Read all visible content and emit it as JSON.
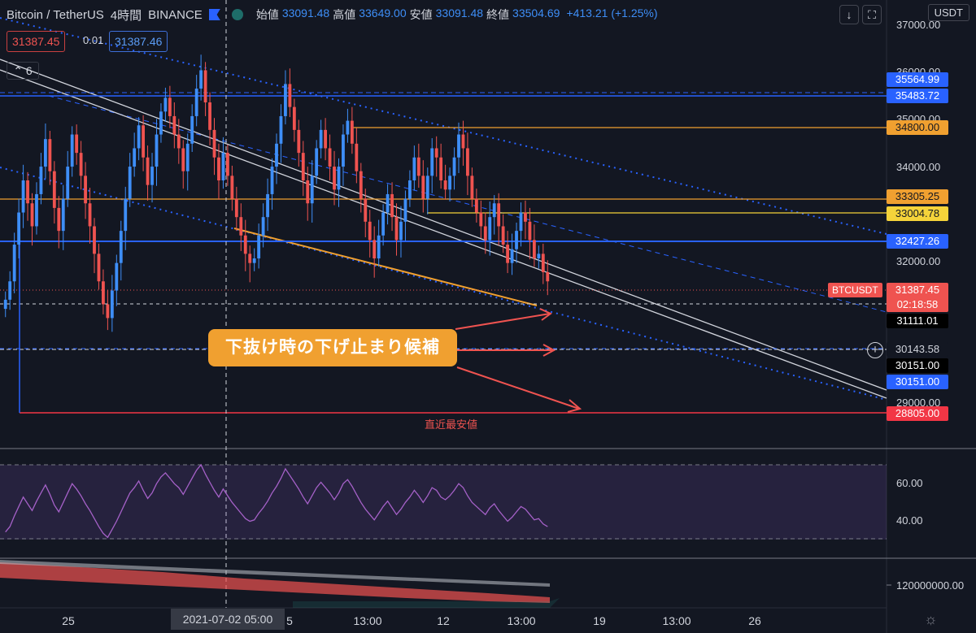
{
  "header": {
    "symbol": "Bitcoin / TetherUS",
    "interval": "4時間",
    "exchange": "BINANCE",
    "open_label": "始値",
    "open": "33091.48",
    "high_label": "高値",
    "high": "33649.00",
    "low_label": "安値",
    "low": "33091.48",
    "close_label": "終値",
    "close": "33504.69",
    "change": "+413.21 (+1.25%)"
  },
  "quote": {
    "bid": "31387.45",
    "spread": "0.01",
    "ask": "31387.46"
  },
  "indicator_collapse": "6",
  "currency_button": "USDT",
  "annotation": {
    "callout": "下抜け時の下げ止まり候補",
    "recent_low_note": "直近最安値"
  },
  "crosshair": {
    "date_label": "2021-07-02   05:00"
  },
  "chart_data": {
    "type": "candlestick",
    "series": [
      {
        "name": "BTCUSDT",
        "last": 31387.45,
        "countdown": "02:18:58"
      }
    ],
    "y_axis": {
      "min": 28500,
      "max": 37000,
      "ticks": [
        "37000.00",
        "36000.00",
        "35000.00",
        "34000.00",
        "33000.00",
        "32000.00",
        "29000.00"
      ]
    },
    "price_levels": [
      {
        "value": "35564.99",
        "color": "#2962ff",
        "style": "dashed"
      },
      {
        "value": "35483.72",
        "color": "#2962ff",
        "style": "solid"
      },
      {
        "value": "34800.00",
        "color": "#f0a030",
        "style": "solid"
      },
      {
        "value": "33305.25",
        "color": "#f0a030",
        "style": "solid"
      },
      {
        "value": "33004.78",
        "color": "#f5d33a",
        "style": "solid"
      },
      {
        "value": "32427.26",
        "color": "#2962ff",
        "style": "solid"
      },
      {
        "value": "31111.01",
        "color": "#000000",
        "style": "dashed"
      },
      {
        "value": "30143.58",
        "color": "#131722",
        "style": "dashed"
      },
      {
        "value": "30151.00",
        "color": "#000000",
        "style": "solid"
      },
      {
        "value": "30151.00",
        "color": "#2962ff",
        "style": "solid"
      },
      {
        "value": "28805.00",
        "color": "#f23645",
        "style": "solid"
      }
    ],
    "x_axis": {
      "ticks": [
        "25",
        "5",
        "13:00",
        "12",
        "13:00",
        "19",
        "13:00",
        "26"
      ]
    },
    "rsi": {
      "levels": [
        "60.00",
        "40.00"
      ],
      "upper_band": 70,
      "lower_band": 30
    },
    "volume_axis": "120000000.00",
    "candles_close": [
      31000,
      31400,
      32200,
      32900,
      33600,
      33100,
      32600,
      33300,
      33900,
      34500,
      33800,
      33000,
      32500,
      33200,
      33900,
      34600,
      34200,
      33700,
      33100,
      32600,
      32000,
      31400,
      30900,
      30600,
      31200,
      31800,
      32500,
      33200,
      33900,
      34300,
      34800,
      34100,
      33500,
      33900,
      34600,
      35100,
      35400,
      35000,
      34600,
      34300,
      33800,
      34400,
      35000,
      35600,
      36000,
      35300,
      34700,
      34100,
      33600,
      34200,
      33700,
      33200,
      32800,
      32400,
      32000,
      31800,
      31900,
      32400,
      32800,
      33300,
      33900,
      34400,
      35000,
      35700,
      35200,
      34700,
      34200,
      33600,
      33100,
      33700,
      34300,
      34700,
      34300,
      33900,
      33400,
      33900,
      34600,
      34900,
      34400,
      33800,
      33200,
      32700,
      32300,
      31900,
      32400,
      32900,
      33300,
      32800,
      32300,
      32700,
      33200,
      33600,
      34100,
      33700,
      33200,
      33700,
      34300,
      34100,
      33600,
      33400,
      33700,
      34100,
      34600,
      34300,
      33700,
      33200,
      32900,
      32600,
      32300,
      32800,
      33100,
      32600,
      32200,
      31800,
      32100,
      32500,
      32900,
      32700,
      32300,
      31900,
      32000,
      31600,
      31400
    ]
  }
}
